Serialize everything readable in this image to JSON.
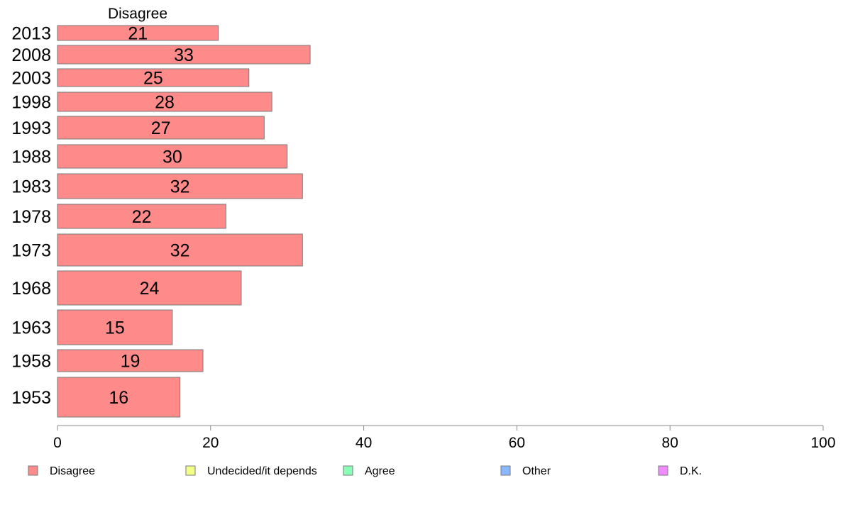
{
  "chart_data": {
    "type": "bar",
    "orientation": "horizontal",
    "stacked": true,
    "categories": [
      "2013",
      "2008",
      "2003",
      "1998",
      "1993",
      "1988",
      "1983",
      "1978",
      "1973",
      "1968",
      "1963",
      "1958",
      "1953"
    ],
    "series": [
      {
        "name": "Disagree",
        "color": "#ff8a8a",
        "values": [
          21,
          33,
          25,
          28,
          27,
          30,
          32,
          22,
          32,
          24,
          15,
          19,
          16
        ]
      }
    ],
    "legend": [
      {
        "name": "Disagree",
        "color": "#ff8a8a"
      },
      {
        "name": "Undecided/it depends",
        "color": "#f4ff8a"
      },
      {
        "name": "Agree",
        "color": "#8affb8"
      },
      {
        "name": "Other",
        "color": "#8ab8ff"
      },
      {
        "name": "D.K.",
        "color": "#f08aff"
      }
    ],
    "legend_position": "bottom",
    "x_ticks": [
      0,
      20,
      40,
      60,
      80,
      100
    ],
    "xlim": [
      0,
      100
    ],
    "grid": false
  }
}
